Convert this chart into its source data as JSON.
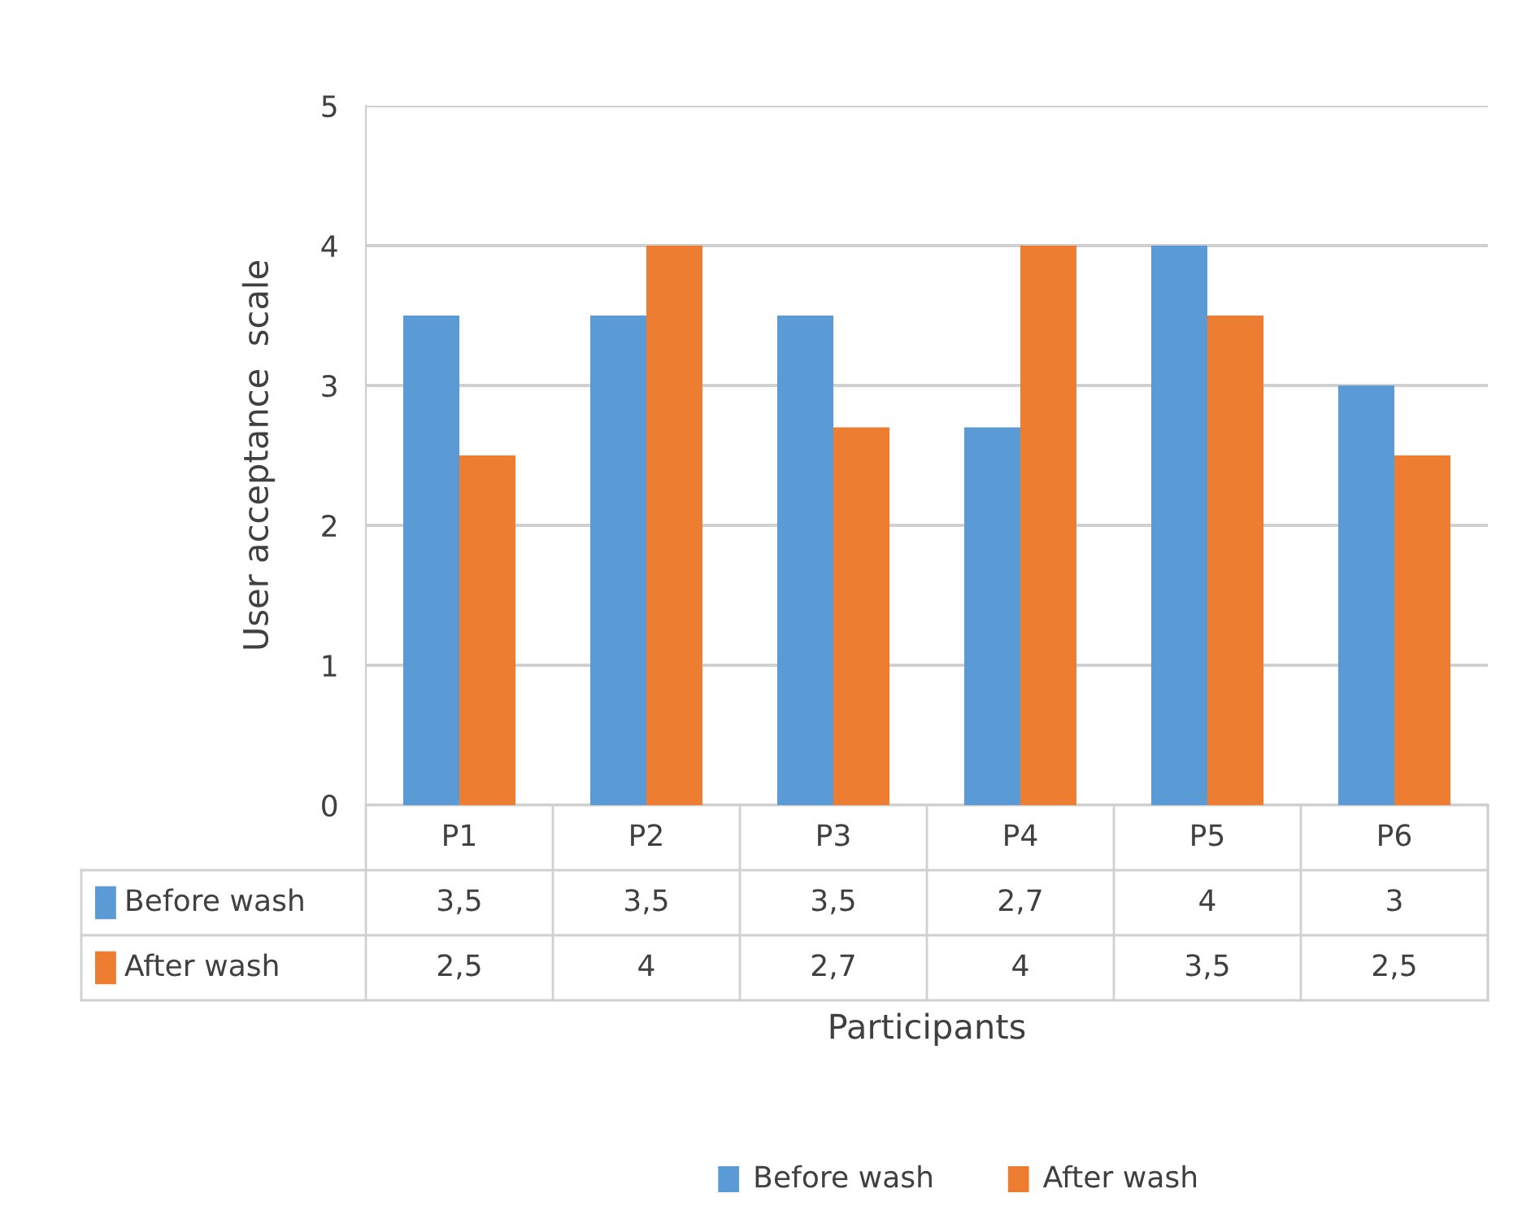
{
  "chart_data": {
    "type": "bar",
    "xlabel": "Participants",
    "ylabel": "User acceptance  scale",
    "categories": [
      "P1",
      "P2",
      "P3",
      "P4",
      "P5",
      "P6"
    ],
    "series": [
      {
        "name": "Before wash",
        "color": "#5b9bd5",
        "values": [
          3.5,
          3.5,
          3.5,
          2.7,
          4,
          3
        ],
        "value_labels": [
          "3,5",
          "3,5",
          "3,5",
          "2,7",
          "4",
          "3"
        ]
      },
      {
        "name": "After wash",
        "color": "#ed7d31",
        "values": [
          2.5,
          4,
          2.7,
          4,
          3.5,
          2.5
        ],
        "value_labels": [
          "2,5",
          "4",
          "2,7",
          "4",
          "3,5",
          "2,5"
        ]
      }
    ],
    "ylim": [
      0,
      5
    ],
    "yticks": [
      0,
      1,
      2,
      3,
      4,
      5
    ],
    "grid": "y",
    "legend": "bottom"
  }
}
